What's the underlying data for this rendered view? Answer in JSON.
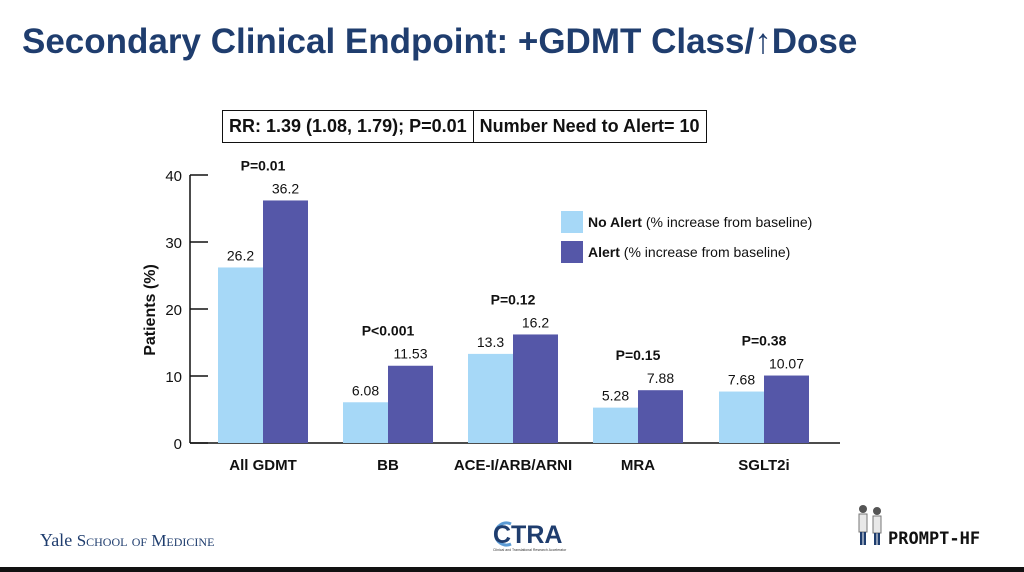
{
  "title": "Secondary Clinical Endpoint: +GDMT Class/↑Dose",
  "stats_box": {
    "rr": "RR: 1.39 (1.08, 1.79); P=0.01",
    "nna": "Number Need to Alert= 10"
  },
  "chart_data": {
    "type": "bar",
    "title": "",
    "xlabel": "",
    "ylabel": "Patients (%)",
    "ylim": [
      0,
      40
    ],
    "yticks": [
      "0",
      "10",
      "20",
      "30",
      "40"
    ],
    "grid": false,
    "legend_position": "top-right",
    "categories": [
      "All GDMT",
      "BB",
      "ACE-I/ARB/ARNI",
      "MRA",
      "SGLT2i"
    ],
    "p_values": [
      "P=0.01",
      "P<0.001",
      "P=0.12",
      "P=0.15",
      "P=0.38"
    ],
    "series": [
      {
        "name": "No Alert",
        "legend_suffix": "(% increase from baseline)",
        "color": "#a6d8f7",
        "values": [
          26.2,
          6.08,
          13.3,
          5.28,
          7.68
        ],
        "labels": [
          "26.2",
          "6.08",
          "13.3",
          "5.28",
          "7.68"
        ]
      },
      {
        "name": "Alert",
        "legend_suffix": "(% increase from baseline)",
        "color": "#5557a8",
        "values": [
          36.2,
          11.53,
          16.2,
          7.88,
          10.07
        ],
        "labels": [
          "36.2",
          "11.53",
          "16.2",
          "7.88",
          "10.07"
        ]
      }
    ]
  },
  "logos": {
    "yale_name": "Yale",
    "yale_school": "School of Medicine",
    "ctra": "CTRA",
    "ctra_sub": "Clinical and Translational Research Accelerator",
    "prompt": "PROMPT-HF"
  },
  "colors": {
    "title": "#1f3d6e",
    "ctra_accent": "#5b9bd5"
  }
}
